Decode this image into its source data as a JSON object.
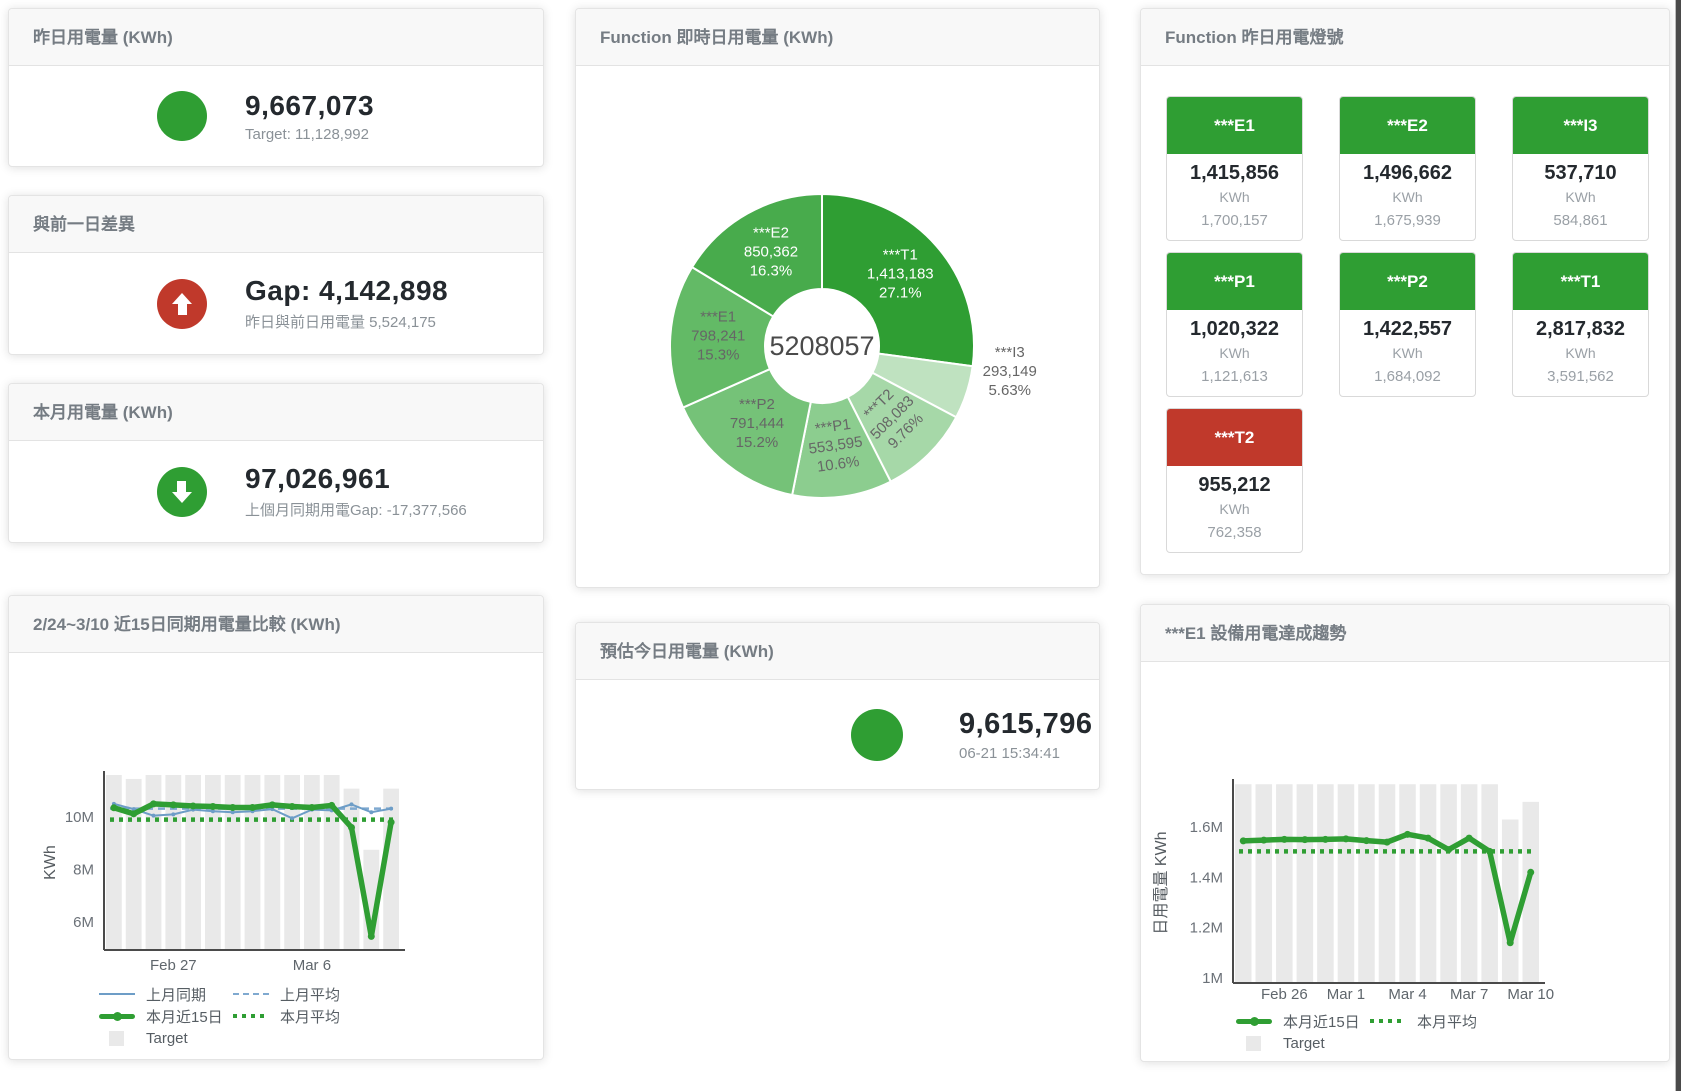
{
  "colors": {
    "primary_green": "#2f9e33",
    "alert_red": "#c0392b",
    "target_gray": "#e9e9e9",
    "blue_line": "#6d9dc7",
    "blue_dashed": "#7fa9d0"
  },
  "cards": {
    "yesterday": {
      "title": "昨日用電量 (KWh)",
      "value": "9,667,073",
      "subtext": "Target: 11,128,992"
    },
    "gap": {
      "title": "與前一日差異",
      "value": "Gap: 4,142,898",
      "subtext": "昨日與前日用電量 5,524,175"
    },
    "month": {
      "title": "本月用電量 (KWh)",
      "value": "97,026,961",
      "subtext": "上個月同期用電Gap: -17,377,566"
    },
    "realtime": {
      "title": "Function 即時日用電量 (KWh)"
    },
    "lights": {
      "title": "Function 昨日用電燈號"
    },
    "compare": {
      "title": "2/24~3/10 近15日同期用電量比較 (KWh)"
    },
    "estimate": {
      "title": "預估今日用電量 (KWh)",
      "value": "9,615,796",
      "subtext": "06-21 15:34:41"
    },
    "trend": {
      "title": "***E1 設備用電達成趨勢"
    }
  },
  "tiles": [
    {
      "label": "***E1",
      "value": "1,415,856",
      "unit": "KWh",
      "target": "1,700,157",
      "status": "green"
    },
    {
      "label": "***E2",
      "value": "1,496,662",
      "unit": "KWh",
      "target": "1,675,939",
      "status": "green"
    },
    {
      "label": "***I3",
      "value": "537,710",
      "unit": "KWh",
      "target": "584,861",
      "status": "green"
    },
    {
      "label": "***P1",
      "value": "1,020,322",
      "unit": "KWh",
      "target": "1,121,613",
      "status": "green"
    },
    {
      "label": "***P2",
      "value": "1,422,557",
      "unit": "KWh",
      "target": "1,684,092",
      "status": "green"
    },
    {
      "label": "***T1",
      "value": "2,817,832",
      "unit": "KWh",
      "target": "3,591,562",
      "status": "green"
    },
    {
      "label": "***T2",
      "value": "955,212",
      "unit": "KWh",
      "target": "762,358",
      "status": "red"
    }
  ],
  "chart_data": [
    {
      "id": "realtime-donut",
      "type": "pie",
      "title": "Function 即時日用電量 (KWh)",
      "center_label": "5208057",
      "slices": [
        {
          "name": "***T1",
          "value": "1,413,183",
          "pct": "27.1%",
          "pct_num": 27.1,
          "color": "#2f9e33",
          "label_color": "#ffffff"
        },
        {
          "name": "***I3",
          "value": "293,149",
          "pct": "5.63%",
          "pct_num": 5.63,
          "color": "#bfe2c0",
          "label_color": "#666666",
          "outside": true,
          "label_r": 190,
          "label_angle_delta": -9
        },
        {
          "name": "***T2",
          "value": "508,083",
          "pct": "9.76%",
          "pct_num": 9.76,
          "color": "#a6d8a8",
          "label_color": "#666666",
          "rotate": -45
        },
        {
          "name": "***P1",
          "value": "553,595",
          "pct": "10.6%",
          "pct_num": 10.6,
          "color": "#8ccd8f",
          "label_color": "#666666",
          "rotate": -8
        },
        {
          "name": "***P2",
          "value": "791,444",
          "pct": "15.2%",
          "pct_num": 15.2,
          "color": "#75c278",
          "label_color": "#666666"
        },
        {
          "name": "***E1",
          "value": "798,241",
          "pct": "15.3%",
          "pct_num": 15.3,
          "color": "#63ba66",
          "label_color": "#666666"
        },
        {
          "name": "***E2",
          "value": "850,362",
          "pct": "16.3%",
          "pct_num": 16.3,
          "color": "#48ab4c",
          "label_color": "#ffffff"
        }
      ]
    },
    {
      "id": "compare",
      "type": "line",
      "title": "2/24~3/10 近15日同期用電量比較 (KWh)",
      "ylabel": "KWh",
      "unit": "M",
      "categories": [
        "2/24",
        "2/25",
        "2/26",
        "2/27",
        "2/28",
        "3/1",
        "3/2",
        "3/3",
        "3/4",
        "3/5",
        "3/6",
        "3/7",
        "3/8",
        "3/9",
        "3/10"
      ],
      "x_ticks": [
        {
          "index": 3,
          "label": "Feb 27"
        },
        {
          "index": 10,
          "label": "Mar 6"
        }
      ],
      "y_ticks": [
        {
          "v": 6,
          "label": "6M"
        },
        {
          "v": 8,
          "label": "8M"
        },
        {
          "v": 10,
          "label": "10M"
        }
      ],
      "ylim": [
        4.93,
        11.6
      ],
      "target_name": "Target",
      "target_values": [
        11.6,
        11.45,
        11.6,
        11.6,
        11.6,
        11.6,
        11.6,
        11.6,
        11.6,
        11.6,
        11.6,
        11.6,
        11.08,
        8.75,
        11.08
      ],
      "series": [
        {
          "name": "上月同期",
          "style": "thin",
          "color": "#6d9dc7",
          "values": [
            10.5,
            10.3,
            10.05,
            10.1,
            10.28,
            10.22,
            10.18,
            10.22,
            10.3,
            9.95,
            10.28,
            10.25,
            10.48,
            10.18,
            10.32
          ]
        },
        {
          "name": "上月平均",
          "style": "dashed",
          "color": "#7fa9d0",
          "const": 10.32
        },
        {
          "name": "本月近15日",
          "style": "thick",
          "color": "#2f9e33",
          "values": [
            10.35,
            10.12,
            10.5,
            10.46,
            10.42,
            10.4,
            10.36,
            10.36,
            10.46,
            10.4,
            10.36,
            10.44,
            9.6,
            5.45,
            9.8
          ]
        },
        {
          "name": "本月平均",
          "style": "dotted",
          "color": "#2f9e33",
          "const": 9.9
        }
      ],
      "legend": [
        [
          {
            "label": "上月同期",
            "style": "line",
            "color": "#6d9dc7"
          },
          {
            "label": "上月平均",
            "style": "dashed",
            "color": "#7fa9d0"
          }
        ],
        [
          {
            "label": "本月近15日",
            "style": "thick",
            "color": "#2f9e33"
          },
          {
            "label": "本月平均",
            "style": "dotted",
            "color": "#2f9e33"
          }
        ],
        [
          {
            "label": "Target",
            "style": "square",
            "color": "#e9e9e9"
          }
        ]
      ]
    },
    {
      "id": "trend",
      "type": "line",
      "title": "***E1 設備用電達成趨勢",
      "ylabel": "日用電量 KWh",
      "unit": "M",
      "categories": [
        "2/24",
        "2/25",
        "2/26",
        "2/27",
        "2/28",
        "3/1",
        "3/2",
        "3/3",
        "3/4",
        "3/5",
        "3/6",
        "3/7",
        "3/8",
        "3/9",
        "3/10"
      ],
      "x_ticks": [
        {
          "index": 2,
          "label": "Feb 26"
        },
        {
          "index": 5,
          "label": "Mar 1"
        },
        {
          "index": 8,
          "label": "Mar 4"
        },
        {
          "index": 11,
          "label": "Mar 7"
        },
        {
          "index": 14,
          "label": "Mar 10"
        }
      ],
      "y_ticks": [
        {
          "v": 1,
          "label": "1M"
        },
        {
          "v": 1.2,
          "label": "1.2M"
        },
        {
          "v": 1.4,
          "label": "1.4M"
        },
        {
          "v": 1.6,
          "label": "1.6M"
        }
      ],
      "ylim": [
        0.98,
        1.775
      ],
      "target_name": "Target",
      "target_values": [
        1.77,
        1.77,
        1.77,
        1.77,
        1.77,
        1.77,
        1.77,
        1.77,
        1.77,
        1.77,
        1.77,
        1.77,
        1.77,
        1.63,
        1.7
      ],
      "series": [
        {
          "name": "本月近15日",
          "style": "thick",
          "color": "#2f9e33",
          "values": [
            1.545,
            1.548,
            1.551,
            1.55,
            1.551,
            1.553,
            1.546,
            1.54,
            1.571,
            1.556,
            1.51,
            1.556,
            1.503,
            1.14,
            1.42
          ]
        },
        {
          "name": "本月平均",
          "style": "dotted",
          "color": "#2f9e33",
          "const": 1.503
        }
      ],
      "legend": [
        [
          {
            "label": "本月近15日",
            "style": "thick",
            "color": "#2f9e33"
          },
          {
            "label": "本月平均",
            "style": "dotted",
            "color": "#2f9e33"
          }
        ],
        [
          {
            "label": "Target",
            "style": "square",
            "color": "#e9e9e9"
          }
        ]
      ]
    }
  ]
}
